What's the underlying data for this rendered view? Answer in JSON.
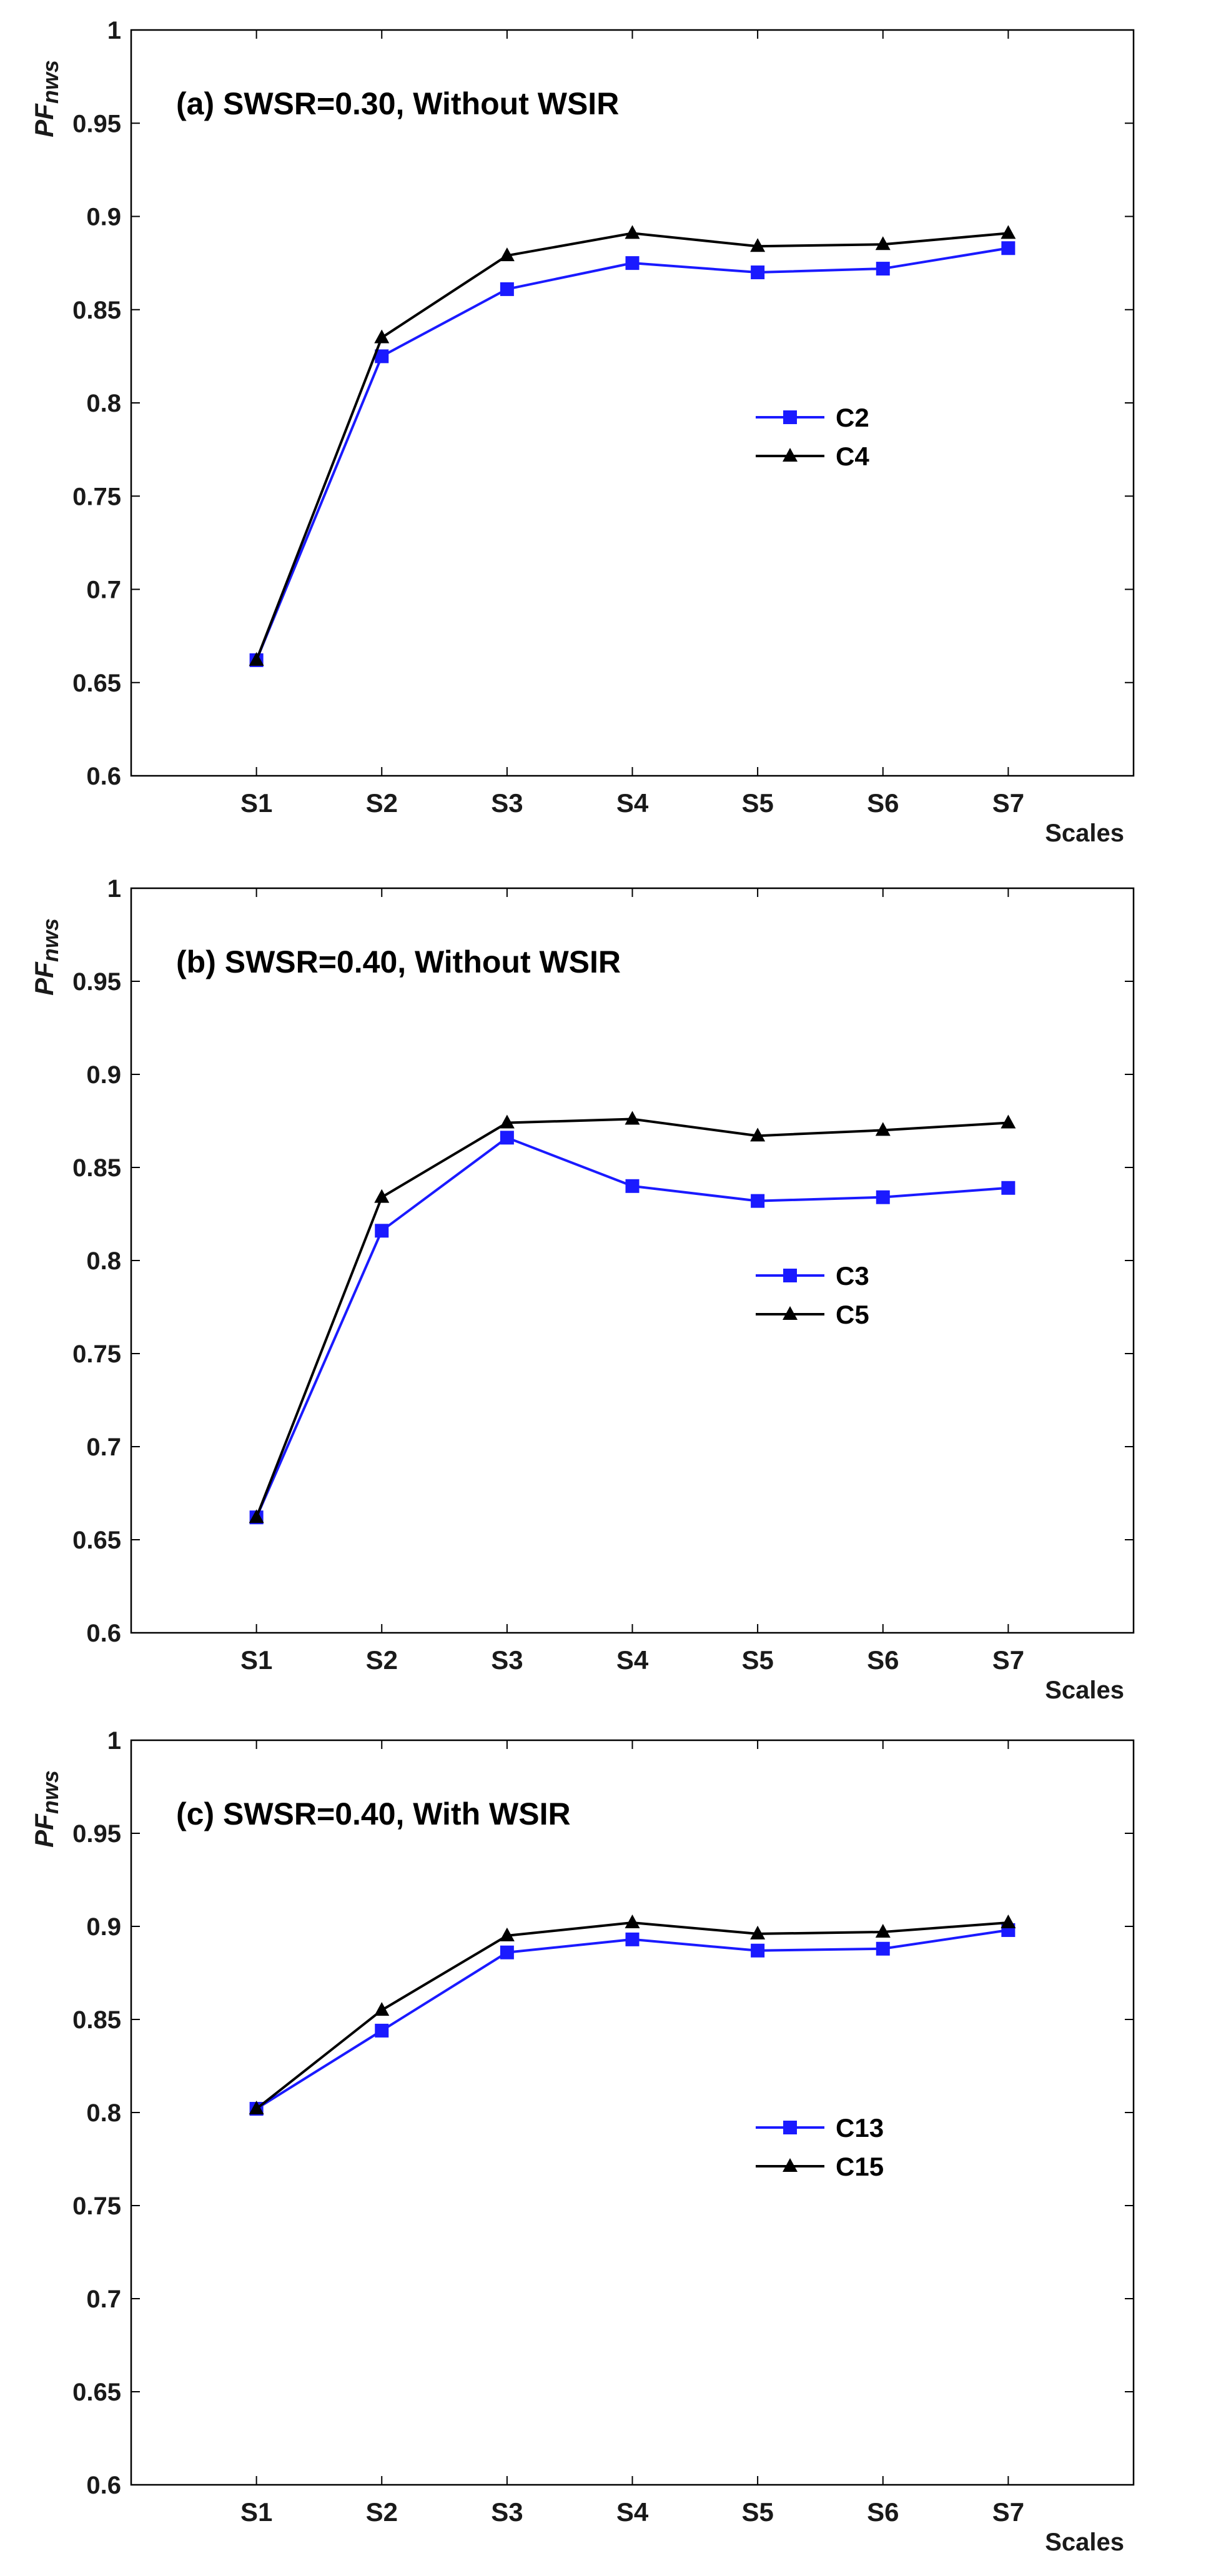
{
  "chart_data": [
    {
      "type": "line",
      "title": "(a) SWSR=0.30, Without WSIR",
      "xlabel": "Scales",
      "ylabel": "PFnws",
      "ylabel_main": "PF",
      "ylabel_sub": "nws",
      "categories": [
        "S1",
        "S2",
        "S3",
        "S4",
        "S5",
        "S6",
        "S7"
      ],
      "ylim": [
        0.6,
        1
      ],
      "yticks": [
        "0.6",
        "0.65",
        "0.7",
        "0.75",
        "0.8",
        "0.85",
        "0.9",
        "0.95",
        "1"
      ],
      "grid": false,
      "legend_position": "center-right",
      "series": [
        {
          "name": "C2",
          "color": "#1a1aff",
          "marker": "square",
          "values": [
            0.662,
            0.825,
            0.861,
            0.875,
            0.87,
            0.872,
            0.883
          ]
        },
        {
          "name": "C4",
          "color": "#000000",
          "marker": "triangle",
          "values": [
            0.662,
            0.835,
            0.879,
            0.891,
            0.884,
            0.885,
            0.891
          ]
        }
      ]
    },
    {
      "type": "line",
      "title": "(b) SWSR=0.40, Without WSIR",
      "xlabel": "Scales",
      "ylabel": "PFnws",
      "ylabel_main": "PF",
      "ylabel_sub": "nws",
      "categories": [
        "S1",
        "S2",
        "S3",
        "S4",
        "S5",
        "S6",
        "S7"
      ],
      "ylim": [
        0.6,
        1
      ],
      "yticks": [
        "0.6",
        "0.65",
        "0.7",
        "0.75",
        "0.8",
        "0.85",
        "0.9",
        "0.95",
        "1"
      ],
      "grid": false,
      "legend_position": "center-right",
      "series": [
        {
          "name": "C3",
          "color": "#1a1aff",
          "marker": "square",
          "values": [
            0.662,
            0.816,
            0.866,
            0.84,
            0.832,
            0.834,
            0.839
          ]
        },
        {
          "name": "C5",
          "color": "#000000",
          "marker": "triangle",
          "values": [
            0.662,
            0.834,
            0.874,
            0.876,
            0.867,
            0.87,
            0.874
          ]
        }
      ]
    },
    {
      "type": "line",
      "title": "(c) SWSR=0.40, With WSIR",
      "xlabel": "Scales",
      "ylabel": "PFnws",
      "ylabel_main": "PF",
      "ylabel_sub": "nws",
      "categories": [
        "S1",
        "S2",
        "S3",
        "S4",
        "S5",
        "S6",
        "S7"
      ],
      "ylim": [
        0.6,
        1
      ],
      "yticks": [
        "0.6",
        "0.65",
        "0.7",
        "0.75",
        "0.8",
        "0.85",
        "0.9",
        "0.95",
        "1"
      ],
      "grid": false,
      "legend_position": "center-right",
      "series": [
        {
          "name": "C13",
          "color": "#1a1aff",
          "marker": "square",
          "values": [
            0.802,
            0.844,
            0.886,
            0.893,
            0.887,
            0.888,
            0.898
          ]
        },
        {
          "name": "C15",
          "color": "#000000",
          "marker": "triangle",
          "values": [
            0.802,
            0.855,
            0.895,
            0.902,
            0.896,
            0.897,
            0.902
          ]
        }
      ]
    }
  ]
}
